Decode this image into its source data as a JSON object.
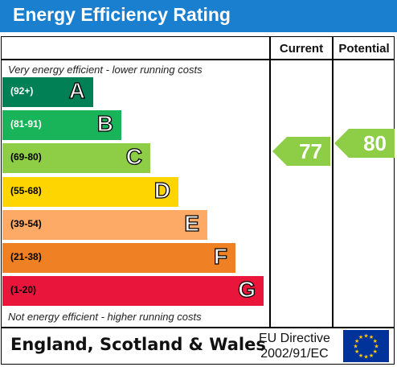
{
  "header": {
    "title": "Energy Efficiency Rating"
  },
  "columns": {
    "current": "Current",
    "potential": "Potential"
  },
  "captions": {
    "top": "Very energy efficient - lower running costs",
    "bottom": "Not energy efficient - higher running costs"
  },
  "bands": [
    {
      "range": "(92+)",
      "letter": "A",
      "color": "#008054",
      "range_color": "#ffffff"
    },
    {
      "range": "(81-91)",
      "letter": "B",
      "color": "#19b459",
      "range_color": "#ffffff"
    },
    {
      "range": "(69-80)",
      "letter": "C",
      "color": "#8dce46",
      "range_color": "#000000"
    },
    {
      "range": "(55-68)",
      "letter": "D",
      "color": "#ffd500",
      "range_color": "#000000"
    },
    {
      "range": "(39-54)",
      "letter": "E",
      "color": "#fcaa65",
      "range_color": "#000000"
    },
    {
      "range": "(21-38)",
      "letter": "F",
      "color": "#ef8023",
      "range_color": "#000000"
    },
    {
      "range": "(1-20)",
      "letter": "G",
      "color": "#e9153b",
      "range_color": "#000000"
    }
  ],
  "ratings": {
    "current": {
      "value": "77",
      "band": "C",
      "color": "#8dce46"
    },
    "potential": {
      "value": "80",
      "band": "C",
      "color": "#8dce46"
    }
  },
  "footer": {
    "country": "England, Scotland & Wales",
    "directive_line1": "EU Directive",
    "directive_line2": "2002/91/EC",
    "flag_icon": "eu-flag-icon"
  }
}
